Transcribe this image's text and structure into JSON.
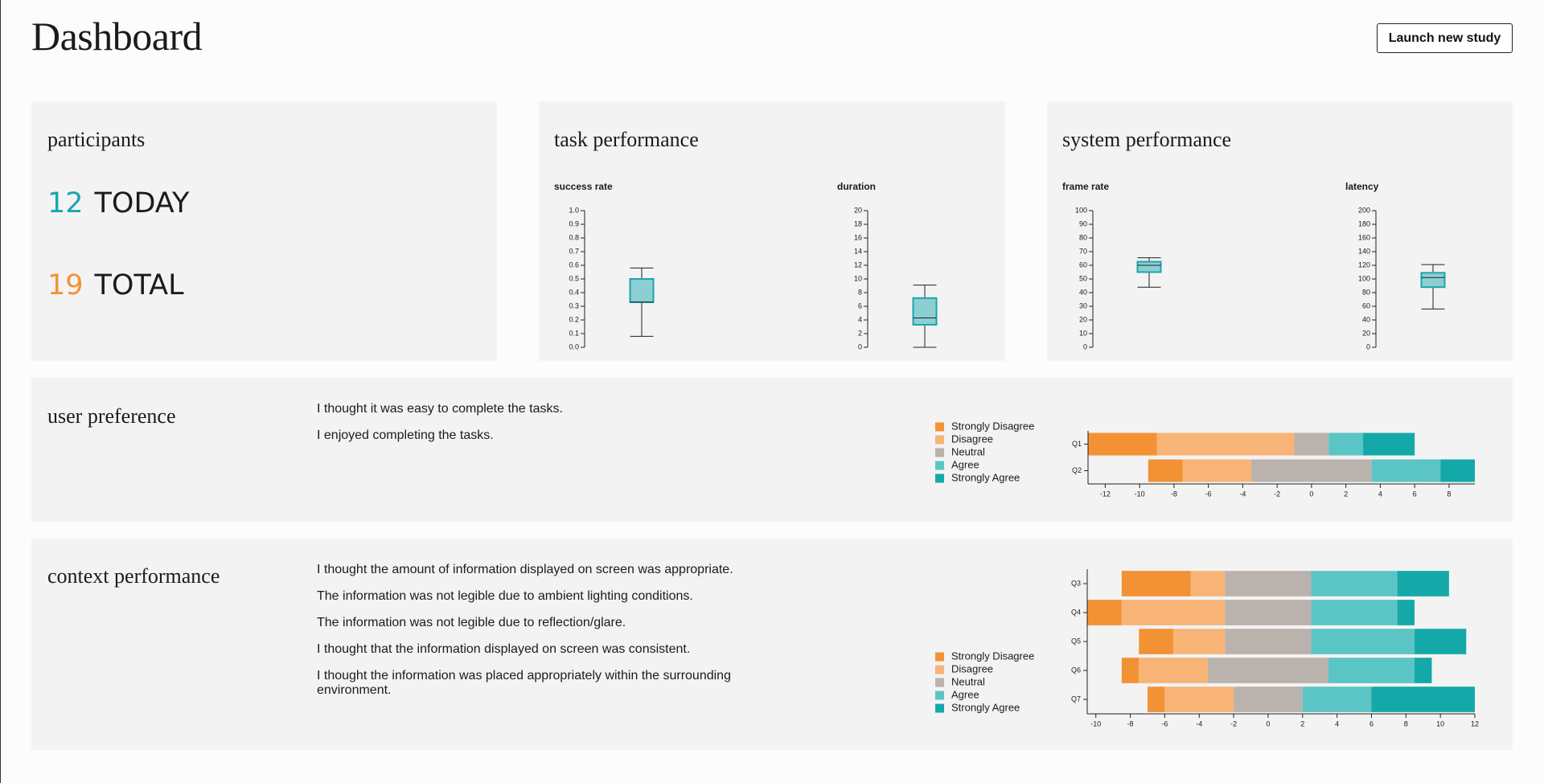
{
  "header": {
    "title": "Dashboard",
    "button": "Launch new study"
  },
  "participants": {
    "title": "participants",
    "today": {
      "count": 12,
      "label": "TODAY"
    },
    "total": {
      "count": 19,
      "label": "TOTAL"
    }
  },
  "task_performance": {
    "title": "task performance",
    "charts": [
      {
        "type": "box",
        "title": "success rate",
        "color": "#1aa6ad",
        "ylim": [
          0,
          1
        ],
        "yticks": [
          {
            "value": 0,
            "label": "0.0"
          },
          0.1,
          0.2,
          0.3,
          0.4,
          0.5,
          0.6,
          0.7,
          0.8,
          0.9,
          {
            "value": 1,
            "label": "1.0"
          }
        ],
        "min": 0.08,
        "q1": 0.33,
        "median": 0.33,
        "q3": 0.5,
        "max": 0.58
      },
      {
        "type": "box",
        "title": "duration",
        "color": "#1aa6ad",
        "ylim": [
          0,
          20
        ],
        "yticks": [
          0,
          2,
          4,
          6,
          8,
          10,
          12,
          14,
          16,
          18,
          20
        ],
        "min": 0,
        "q1": 3.3,
        "median": 4.3,
        "q3": 7.2,
        "max": 9.1
      }
    ]
  },
  "system_performance": {
    "title": "system performance",
    "charts": [
      {
        "type": "box",
        "title": "frame rate",
        "color": "#1aa6ad",
        "ylim": [
          0,
          100
        ],
        "yticks": [
          0,
          10,
          20,
          30,
          40,
          50,
          60,
          70,
          80,
          90,
          100
        ],
        "min": 44,
        "q1": 55,
        "median": 60,
        "q3": 62.6,
        "max": 65.5
      },
      {
        "type": "box",
        "title": "latency",
        "color": "#1aa6ad",
        "ylim": [
          0,
          200
        ],
        "yticks": [
          0,
          20,
          40,
          60,
          80,
          100,
          120,
          140,
          160,
          180,
          200
        ],
        "min": 56,
        "q1": 88,
        "median": 102,
        "q3": 109,
        "max": 121
      }
    ]
  },
  "user_preference": {
    "title": "user preference",
    "questions": [
      "I thought it was easy to complete the tasks.",
      "I enjoyed completing the tasks."
    ],
    "chart_data": {
      "type": "diverging-bar",
      "orientation": "horizontal",
      "categories": [
        "Q1",
        "Q2"
      ],
      "series": [
        {
          "name": "Strongly Disagree",
          "color": "#f39234",
          "values": [
            4,
            2
          ]
        },
        {
          "name": "Disagree",
          "color": "#f8b477",
          "values": [
            8,
            4
          ]
        },
        {
          "name": "Neutral",
          "color": "#bab2ad",
          "values": [
            2,
            7
          ]
        },
        {
          "name": "Agree",
          "color": "#5bc4c4",
          "values": [
            2,
            4
          ]
        },
        {
          "name": "Strongly Agree",
          "color": "#15a8a8",
          "values": [
            3,
            2
          ]
        }
      ],
      "xlim": [
        -13,
        9.5
      ],
      "xticks": [
        -12,
        -10,
        -8,
        -6,
        -4,
        -2,
        0,
        2,
        4,
        6,
        8
      ]
    }
  },
  "context_performance": {
    "title": "context performance",
    "questions": [
      "I thought the amount of information displayed on screen was appropriate.",
      "The information was not legible due to ambient lighting conditions.",
      "The information was not legible due to reflection/glare.",
      "I thought that the information displayed on screen was consistent.",
      "I thought the information was placed appropriately within the surrounding environment."
    ],
    "chart_data": {
      "type": "diverging-bar",
      "orientation": "horizontal",
      "categories": [
        "Q3",
        "Q4",
        "Q5",
        "Q6",
        "Q7"
      ],
      "series": [
        {
          "name": "Strongly Disagree",
          "color": "#f39234",
          "values": [
            4,
            2,
            2,
            1,
            1
          ]
        },
        {
          "name": "Disagree",
          "color": "#f8b477",
          "values": [
            2,
            6,
            3,
            4,
            4
          ]
        },
        {
          "name": "Neutral",
          "color": "#bab2ad",
          "values": [
            5,
            5,
            5,
            7,
            4
          ]
        },
        {
          "name": "Agree",
          "color": "#5bc4c4",
          "values": [
            5,
            5,
            6,
            5,
            4
          ]
        },
        {
          "name": "Strongly Agree",
          "color": "#15a8a8",
          "values": [
            3,
            1,
            3,
            1,
            6
          ]
        }
      ],
      "xlim": [
        -10.5,
        12
      ],
      "xticks": [
        -10,
        -8,
        -6,
        -4,
        -2,
        0,
        2,
        4,
        6,
        8,
        10,
        12
      ]
    }
  }
}
